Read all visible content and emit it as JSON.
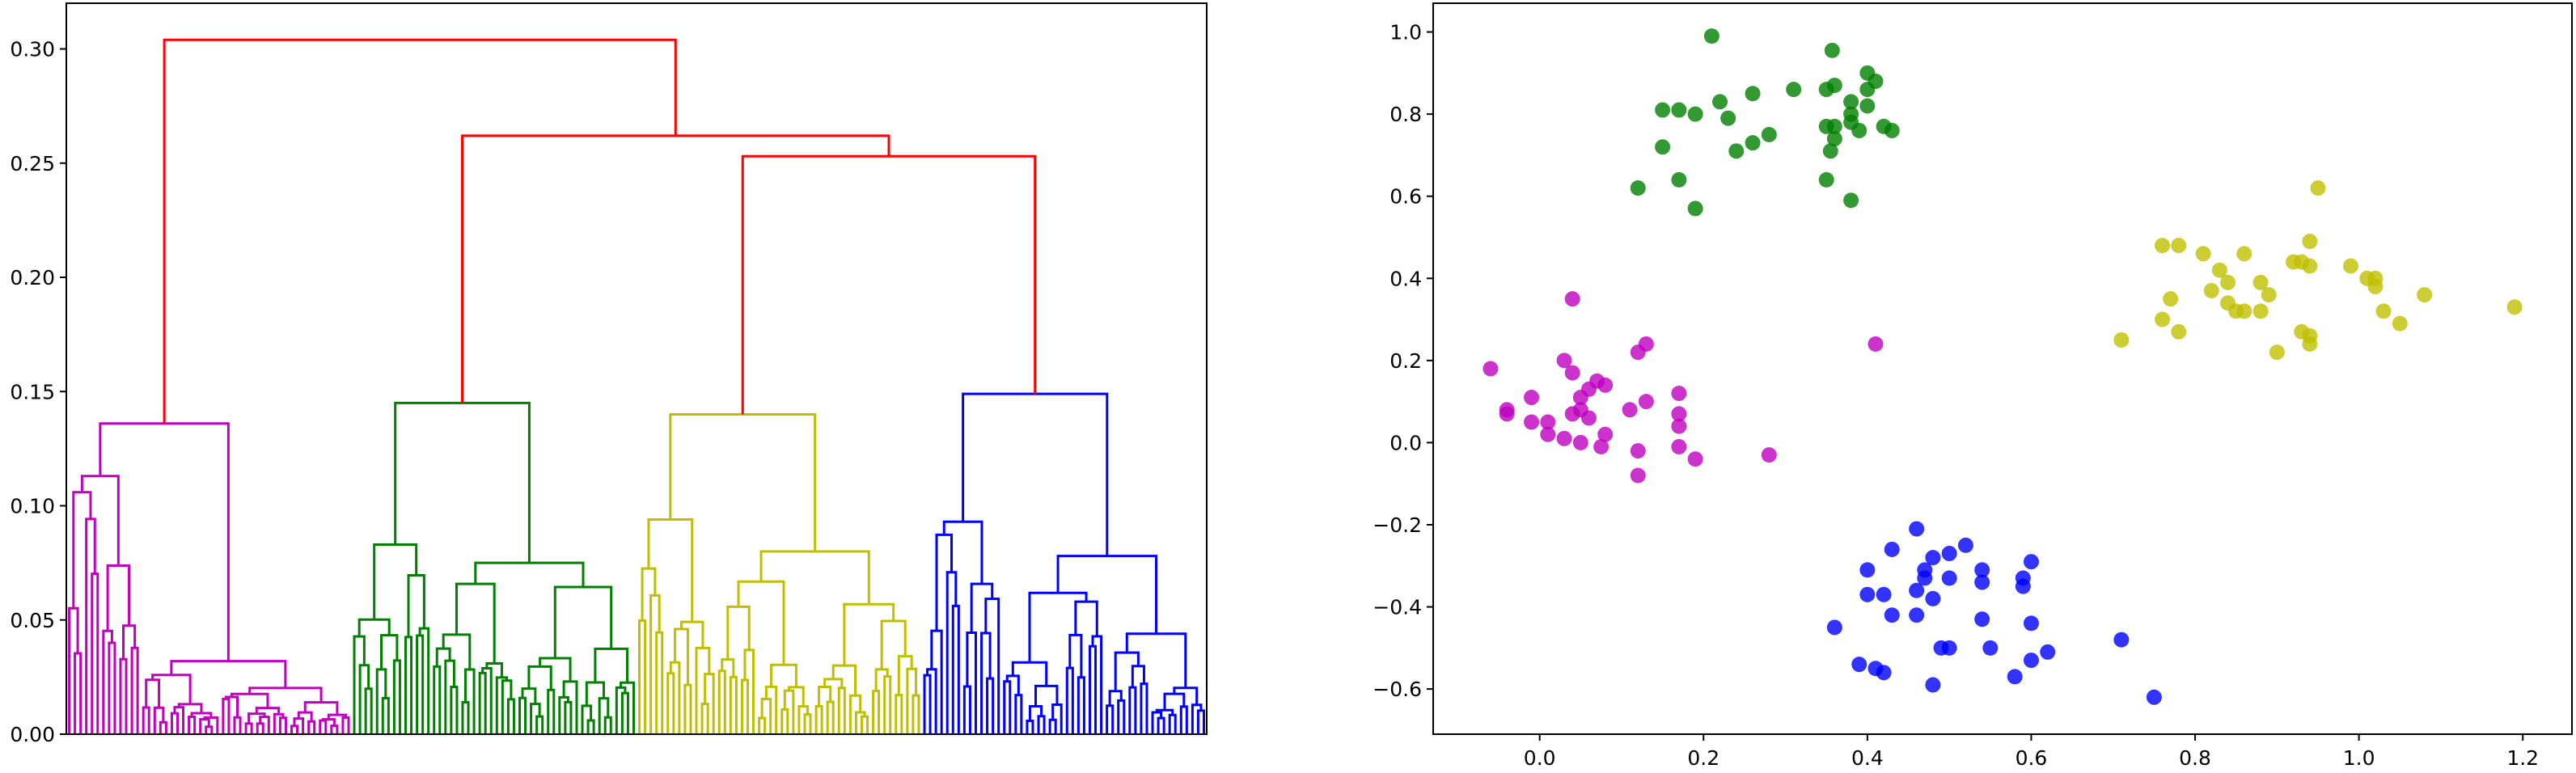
{
  "chart_data": [
    {
      "type": "dendrogram",
      "title": "",
      "xlabel": "",
      "ylabel": "",
      "ylim": [
        0,
        0.32
      ],
      "y_ticks": [
        "0.00",
        "0.05",
        "0.10",
        "0.15",
        "0.20",
        "0.25",
        "0.30"
      ],
      "x_ticks_shown": false,
      "leaf_count": 200,
      "link_color_above_threshold": "#ff0000",
      "clusters": [
        {
          "color": "#bf00bf",
          "leaves": 50,
          "root_height": 0.136,
          "child_heights": [
            0.113,
            0.032
          ]
        },
        {
          "color": "#008000",
          "leaves": 50,
          "root_height": 0.145,
          "child_heights": [
            0.083,
            0.075
          ]
        },
        {
          "color": "#bfbf00",
          "leaves": 50,
          "root_height": 0.14,
          "child_heights": [
            0.094,
            0.08
          ]
        },
        {
          "color": "#0000ff",
          "leaves": 50,
          "root_height": 0.149,
          "child_heights": [
            0.093,
            0.078
          ]
        }
      ],
      "upper_links": [
        {
          "join": [
            2,
            3
          ],
          "height": 0.253
        },
        {
          "join": [
            1,
            "yellow+blue"
          ],
          "height": 0.262
        },
        {
          "join": [
            0,
            "rest"
          ],
          "height": 0.304
        }
      ]
    },
    {
      "type": "scatter",
      "title": "",
      "xlabel": "",
      "ylabel": "",
      "xlim": [
        -0.13,
        1.26
      ],
      "ylim": [
        -0.71,
        1.07
      ],
      "x_ticks": [
        "0.0",
        "0.2",
        "0.4",
        "0.6",
        "0.8",
        "1.0",
        "1.2"
      ],
      "y_ticks": [
        "−0.6",
        "−0.4",
        "−0.2",
        "0.0",
        "0.2",
        "0.4",
        "0.6",
        "0.8",
        "1.0"
      ],
      "series": [
        {
          "color": "#008000",
          "points": [
            [
              0.21,
              0.99
            ],
            [
              0.357,
              0.955
            ],
            [
              0.4,
              0.9
            ],
            [
              0.41,
              0.88
            ],
            [
              0.4,
              0.86
            ],
            [
              0.35,
              0.86
            ],
            [
              0.31,
              0.86
            ],
            [
              0.36,
              0.87
            ],
            [
              0.26,
              0.85
            ],
            [
              0.17,
              0.81
            ],
            [
              0.15,
              0.81
            ],
            [
              0.22,
              0.83
            ],
            [
              0.38,
              0.83
            ],
            [
              0.4,
              0.82
            ],
            [
              0.23,
              0.79
            ],
            [
              0.19,
              0.8
            ],
            [
              0.35,
              0.77
            ],
            [
              0.36,
              0.77
            ],
            [
              0.38,
              0.8
            ],
            [
              0.38,
              0.78
            ],
            [
              0.42,
              0.77
            ],
            [
              0.43,
              0.76
            ],
            [
              0.39,
              0.76
            ],
            [
              0.28,
              0.75
            ],
            [
              0.36,
              0.74
            ],
            [
              0.355,
              0.71
            ],
            [
              0.26,
              0.73
            ],
            [
              0.15,
              0.72
            ],
            [
              0.24,
              0.71
            ],
            [
              0.17,
              0.64
            ],
            [
              0.35,
              0.64
            ],
            [
              0.12,
              0.62
            ],
            [
              0.38,
              0.59
            ],
            [
              0.19,
              0.57
            ]
          ]
        },
        {
          "color": "#bfbf00",
          "points": [
            [
              0.95,
              0.62
            ],
            [
              0.94,
              0.49
            ],
            [
              0.76,
              0.48
            ],
            [
              0.78,
              0.48
            ],
            [
              0.81,
              0.46
            ],
            [
              0.83,
              0.42
            ],
            [
              0.86,
              0.46
            ],
            [
              0.92,
              0.44
            ],
            [
              0.93,
              0.44
            ],
            [
              0.94,
              0.43
            ],
            [
              0.99,
              0.43
            ],
            [
              1.01,
              0.4
            ],
            [
              1.02,
              0.4
            ],
            [
              1.02,
              0.38
            ],
            [
              0.84,
              0.39
            ],
            [
              0.82,
              0.37
            ],
            [
              0.88,
              0.39
            ],
            [
              0.89,
              0.36
            ],
            [
              0.77,
              0.35
            ],
            [
              0.84,
              0.34
            ],
            [
              0.85,
              0.32
            ],
            [
              0.86,
              0.32
            ],
            [
              0.88,
              0.32
            ],
            [
              1.08,
              0.36
            ],
            [
              1.19,
              0.33
            ],
            [
              1.03,
              0.32
            ],
            [
              1.05,
              0.29
            ],
            [
              0.76,
              0.3
            ],
            [
              0.78,
              0.27
            ],
            [
              0.93,
              0.27
            ],
            [
              0.94,
              0.26
            ],
            [
              0.71,
              0.25
            ],
            [
              0.94,
              0.24
            ],
            [
              0.9,
              0.22
            ]
          ]
        },
        {
          "color": "#bf00bf",
          "points": [
            [
              0.04,
              0.35
            ],
            [
              0.41,
              0.24
            ],
            [
              0.13,
              0.24
            ],
            [
              0.12,
              0.22
            ],
            [
              -0.06,
              0.18
            ],
            [
              0.03,
              0.2
            ],
            [
              0.04,
              0.17
            ],
            [
              0.07,
              0.15
            ],
            [
              0.08,
              0.14
            ],
            [
              0.06,
              0.13
            ],
            [
              0.17,
              0.12
            ],
            [
              0.05,
              0.11
            ],
            [
              0.13,
              0.1
            ],
            [
              -0.01,
              0.11
            ],
            [
              0.05,
              0.08
            ],
            [
              0.11,
              0.08
            ],
            [
              -0.04,
              0.08
            ],
            [
              0.17,
              0.07
            ],
            [
              -0.04,
              0.07
            ],
            [
              0.04,
              0.07
            ],
            [
              0.06,
              0.06
            ],
            [
              -0.01,
              0.05
            ],
            [
              0.01,
              0.05
            ],
            [
              0.17,
              0.04
            ],
            [
              0.08,
              0.02
            ],
            [
              0.01,
              0.02
            ],
            [
              0.03,
              0.01
            ],
            [
              0.05,
              0.0
            ],
            [
              0.075,
              -0.01
            ],
            [
              0.12,
              -0.02
            ],
            [
              0.17,
              -0.01
            ],
            [
              0.28,
              -0.03
            ],
            [
              0.19,
              -0.04
            ],
            [
              0.12,
              -0.08
            ]
          ]
        },
        {
          "color": "#0000ff",
          "points": [
            [
              0.46,
              -0.21
            ],
            [
              0.52,
              -0.25
            ],
            [
              0.43,
              -0.26
            ],
            [
              0.5,
              -0.27
            ],
            [
              0.48,
              -0.28
            ],
            [
              0.6,
              -0.29
            ],
            [
              0.4,
              -0.31
            ],
            [
              0.47,
              -0.31
            ],
            [
              0.54,
              -0.31
            ],
            [
              0.5,
              -0.33
            ],
            [
              0.47,
              -0.33
            ],
            [
              0.54,
              -0.34
            ],
            [
              0.59,
              -0.33
            ],
            [
              0.59,
              -0.35
            ],
            [
              0.4,
              -0.37
            ],
            [
              0.42,
              -0.37
            ],
            [
              0.46,
              -0.36
            ],
            [
              0.48,
              -0.38
            ],
            [
              0.43,
              -0.42
            ],
            [
              0.46,
              -0.42
            ],
            [
              0.54,
              -0.43
            ],
            [
              0.6,
              -0.44
            ],
            [
              0.36,
              -0.45
            ],
            [
              0.71,
              -0.48
            ],
            [
              0.49,
              -0.5
            ],
            [
              0.5,
              -0.5
            ],
            [
              0.55,
              -0.5
            ],
            [
              0.62,
              -0.51
            ],
            [
              0.6,
              -0.53
            ],
            [
              0.39,
              -0.54
            ],
            [
              0.41,
              -0.55
            ],
            [
              0.42,
              -0.56
            ],
            [
              0.58,
              -0.57
            ],
            [
              0.48,
              -0.59
            ],
            [
              0.75,
              -0.62
            ]
          ]
        }
      ]
    }
  ]
}
